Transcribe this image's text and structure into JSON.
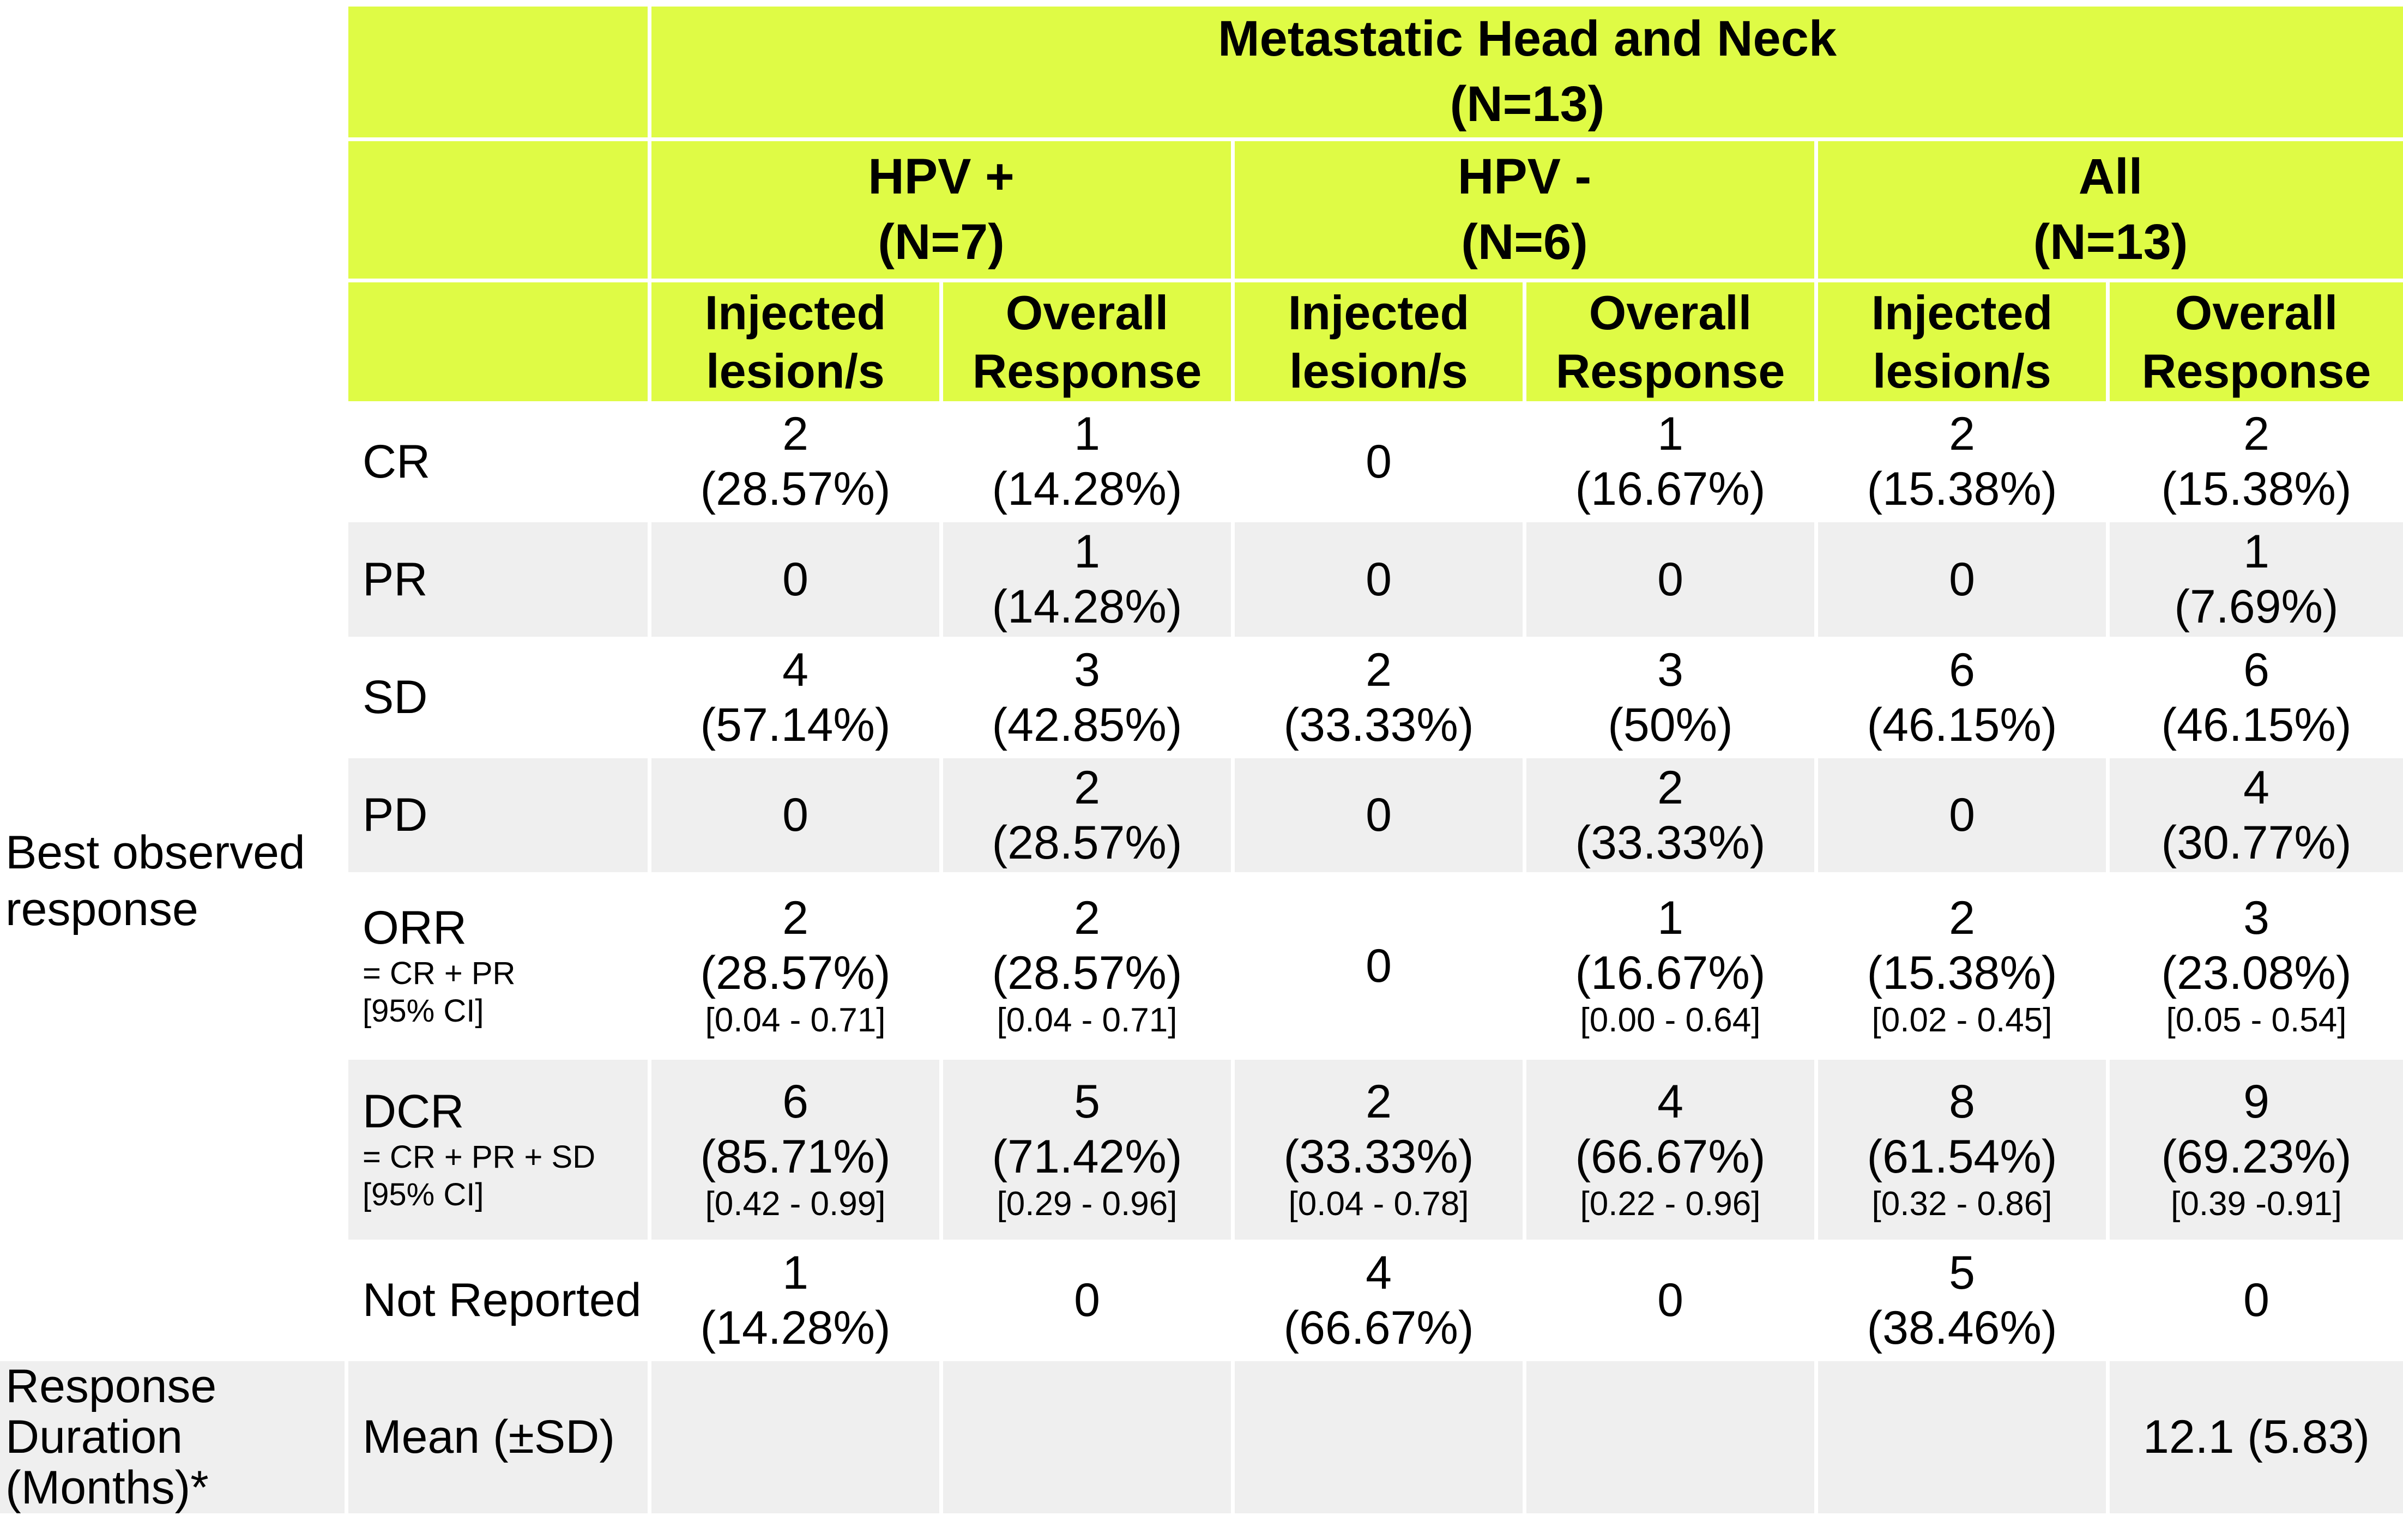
{
  "colors": {
    "header_bg": "#DFFB45",
    "stripe_bg": "#EFEFEF",
    "text": "#000000"
  },
  "header": {
    "title": [
      "Metastatic Head and Neck",
      "(N=13)"
    ],
    "groups": [
      [
        "HPV +",
        "(N=7)"
      ],
      [
        "HPV -",
        "(N=6)"
      ],
      [
        "All",
        "(N=13)"
      ]
    ],
    "measures": [
      [
        "Injected",
        "lesion/s"
      ],
      [
        "Overall",
        "Response"
      ],
      [
        "Injected",
        "lesion/s"
      ],
      [
        "Overall",
        "Response"
      ],
      [
        "Injected",
        "lesion/s"
      ],
      [
        "Overall",
        "Response"
      ]
    ]
  },
  "sections": {
    "best_observed": [
      "Best observed",
      "response"
    ],
    "duration": [
      "Response",
      "Duration",
      "(Months)*"
    ]
  },
  "rows": [
    {
      "label": "CR",
      "sub": [],
      "cells": [
        [
          "2",
          "(28.57%)",
          ""
        ],
        [
          "1",
          "(14.28%)",
          ""
        ],
        [
          "0",
          "",
          ""
        ],
        [
          "1",
          "(16.67%)",
          ""
        ],
        [
          "2",
          "(15.38%)",
          ""
        ],
        [
          "2",
          "(15.38%)",
          ""
        ]
      ]
    },
    {
      "label": "PR",
      "sub": [],
      "cells": [
        [
          "0",
          "",
          ""
        ],
        [
          "1",
          "(14.28%)",
          ""
        ],
        [
          "0",
          "",
          ""
        ],
        [
          "0",
          "",
          ""
        ],
        [
          "0",
          "",
          ""
        ],
        [
          "1",
          "(7.69%)",
          ""
        ]
      ]
    },
    {
      "label": "SD",
      "sub": [],
      "cells": [
        [
          "4",
          "(57.14%)",
          ""
        ],
        [
          "3",
          "(42.85%)",
          ""
        ],
        [
          "2",
          "(33.33%)",
          ""
        ],
        [
          "3",
          "(50%)",
          ""
        ],
        [
          "6",
          "(46.15%)",
          ""
        ],
        [
          "6",
          "(46.15%)",
          ""
        ]
      ]
    },
    {
      "label": "PD",
      "sub": [],
      "cells": [
        [
          "0",
          "",
          ""
        ],
        [
          "2",
          "(28.57%)",
          ""
        ],
        [
          "0",
          "",
          ""
        ],
        [
          "2",
          "(33.33%)",
          ""
        ],
        [
          "0",
          "",
          ""
        ],
        [
          "4",
          "(30.77%)",
          ""
        ]
      ]
    },
    {
      "label": "ORR",
      "sub": [
        "= CR + PR",
        "[95% CI]"
      ],
      "cells": [
        [
          "2",
          "(28.57%)",
          "[0.04 - 0.71]"
        ],
        [
          "2",
          "(28.57%)",
          "[0.04 - 0.71]"
        ],
        [
          "0",
          "",
          ""
        ],
        [
          "1",
          "(16.67%)",
          "[0.00 - 0.64]"
        ],
        [
          "2",
          "(15.38%)",
          "[0.02 - 0.45]"
        ],
        [
          "3",
          "(23.08%)",
          "[0.05 - 0.54]"
        ]
      ]
    },
    {
      "label": "DCR",
      "sub": [
        "= CR + PR + SD",
        "[95% CI]"
      ],
      "cells": [
        [
          "6",
          "(85.71%)",
          "[0.42 - 0.99]"
        ],
        [
          "5",
          "(71.42%)",
          "[0.29 - 0.96]"
        ],
        [
          "2",
          "(33.33%)",
          "[0.04 - 0.78]"
        ],
        [
          "4",
          "(66.67%)",
          "[0.22 - 0.96]"
        ],
        [
          "8",
          "(61.54%)",
          "[0.32 - 0.86]"
        ],
        [
          "9",
          "(69.23%)",
          "[0.39 -0.91]"
        ]
      ]
    },
    {
      "label": "Not Reported",
      "sub": [],
      "cells": [
        [
          "1",
          "(14.28%)",
          ""
        ],
        [
          "0",
          "",
          ""
        ],
        [
          "4",
          "(66.67%)",
          ""
        ],
        [
          "0",
          "",
          ""
        ],
        [
          "5",
          "(38.46%)",
          ""
        ],
        [
          "0",
          "",
          ""
        ]
      ]
    }
  ],
  "duration_row": {
    "label": "Mean (±SD)",
    "cells": [
      "",
      "",
      "",
      "",
      "",
      "12.1 (5.83)"
    ]
  }
}
